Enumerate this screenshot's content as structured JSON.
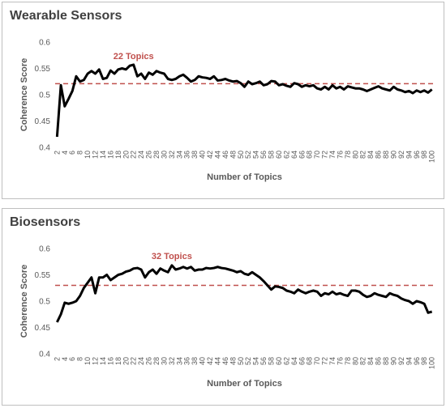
{
  "chart_data": [
    {
      "type": "line",
      "title": "Wearable Sensors",
      "x_label": "Number of Topics",
      "y_label": "Coherence Score",
      "x": [
        2,
        3,
        4,
        5,
        6,
        7,
        8,
        9,
        10,
        11,
        12,
        13,
        14,
        15,
        16,
        17,
        18,
        19,
        20,
        21,
        22,
        23,
        24,
        25,
        26,
        27,
        28,
        29,
        30,
        31,
        32,
        33,
        34,
        35,
        36,
        37,
        38,
        39,
        40,
        41,
        42,
        43,
        44,
        45,
        46,
        47,
        48,
        49,
        50,
        51,
        52,
        53,
        54,
        55,
        56,
        57,
        58,
        59,
        60,
        61,
        62,
        63,
        64,
        65,
        66,
        67,
        68,
        69,
        70,
        71,
        72,
        73,
        74,
        75,
        76,
        77,
        78,
        79,
        80,
        81,
        82,
        83,
        84,
        85,
        86,
        87,
        88,
        89,
        90,
        91,
        92,
        93,
        94,
        95,
        96,
        97,
        98,
        99,
        100
      ],
      "series": [
        {
          "name": "Coherence Score",
          "color": "#000000",
          "values": [
            0.42,
            0.518,
            0.478,
            0.492,
            0.507,
            0.535,
            0.525,
            0.528,
            0.54,
            0.545,
            0.54,
            0.548,
            0.53,
            0.532,
            0.546,
            0.54,
            0.548,
            0.55,
            0.548,
            0.555,
            0.557,
            0.535,
            0.54,
            0.53,
            0.542,
            0.538,
            0.545,
            0.542,
            0.54,
            0.53,
            0.528,
            0.53,
            0.535,
            0.538,
            0.532,
            0.525,
            0.528,
            0.535,
            0.533,
            0.532,
            0.53,
            0.535,
            0.527,
            0.528,
            0.53,
            0.527,
            0.525,
            0.526,
            0.522,
            0.515,
            0.525,
            0.52,
            0.522,
            0.525,
            0.518,
            0.52,
            0.526,
            0.525,
            0.518,
            0.52,
            0.517,
            0.515,
            0.522,
            0.52,
            0.515,
            0.518,
            0.516,
            0.518,
            0.512,
            0.51,
            0.515,
            0.51,
            0.518,
            0.512,
            0.515,
            0.51,
            0.516,
            0.514,
            0.512,
            0.512,
            0.51,
            0.507,
            0.51,
            0.513,
            0.516,
            0.512,
            0.51,
            0.508,
            0.515,
            0.51,
            0.508,
            0.505,
            0.507,
            0.503,
            0.508,
            0.505,
            0.508,
            0.504,
            0.51
          ]
        }
      ],
      "reference_line": {
        "value": 0.521,
        "color": "#c0504d"
      },
      "annotation": {
        "text": "22 Topics",
        "x": 22,
        "y": 0.568,
        "color": "#c0504d"
      },
      "xlim": [
        1.5,
        100.5
      ],
      "ylim": [
        0.4,
        0.6
      ],
      "yticks": [
        0.4,
        0.45,
        0.5,
        0.55,
        0.6
      ],
      "xticks": [
        2,
        4,
        6,
        8,
        10,
        12,
        14,
        16,
        18,
        20,
        22,
        24,
        26,
        28,
        30,
        32,
        34,
        36,
        38,
        40,
        42,
        44,
        46,
        48,
        50,
        52,
        54,
        56,
        58,
        60,
        62,
        64,
        66,
        68,
        70,
        72,
        74,
        76,
        78,
        80,
        82,
        84,
        86,
        88,
        90,
        92,
        94,
        96,
        98,
        100
      ],
      "grid": false
    },
    {
      "type": "line",
      "title": "Biosensors",
      "x_label": "Number of Topics",
      "y_label": "Coherence Score",
      "x": [
        2,
        3,
        4,
        5,
        6,
        7,
        8,
        9,
        10,
        11,
        12,
        13,
        14,
        15,
        16,
        17,
        18,
        19,
        20,
        21,
        22,
        23,
        24,
        25,
        26,
        27,
        28,
        29,
        30,
        31,
        32,
        33,
        34,
        35,
        36,
        37,
        38,
        39,
        40,
        41,
        42,
        43,
        44,
        45,
        46,
        47,
        48,
        49,
        50,
        51,
        52,
        53,
        54,
        55,
        56,
        57,
        58,
        59,
        60,
        61,
        62,
        63,
        64,
        65,
        66,
        67,
        68,
        69,
        70,
        71,
        72,
        73,
        74,
        75,
        76,
        77,
        78,
        79,
        80,
        81,
        82,
        83,
        84,
        85,
        86,
        87,
        88,
        89,
        90,
        91,
        92,
        93,
        94,
        95,
        96,
        97,
        98,
        99,
        100
      ],
      "series": [
        {
          "name": "Coherence Score",
          "color": "#000000",
          "values": [
            0.46,
            0.475,
            0.497,
            0.495,
            0.497,
            0.5,
            0.51,
            0.525,
            0.535,
            0.545,
            0.515,
            0.545,
            0.545,
            0.55,
            0.54,
            0.545,
            0.55,
            0.552,
            0.556,
            0.558,
            0.562,
            0.563,
            0.56,
            0.545,
            0.555,
            0.56,
            0.552,
            0.562,
            0.558,
            0.555,
            0.568,
            0.56,
            0.562,
            0.565,
            0.562,
            0.565,
            0.558,
            0.56,
            0.56,
            0.563,
            0.562,
            0.563,
            0.565,
            0.563,
            0.562,
            0.56,
            0.558,
            0.555,
            0.557,
            0.552,
            0.55,
            0.555,
            0.55,
            0.545,
            0.538,
            0.53,
            0.522,
            0.528,
            0.527,
            0.525,
            0.52,
            0.518,
            0.515,
            0.522,
            0.518,
            0.515,
            0.518,
            0.52,
            0.518,
            0.51,
            0.515,
            0.513,
            0.518,
            0.513,
            0.515,
            0.512,
            0.51,
            0.52,
            0.52,
            0.518,
            0.512,
            0.508,
            0.51,
            0.515,
            0.512,
            0.51,
            0.508,
            0.515,
            0.512,
            0.51,
            0.505,
            0.502,
            0.5,
            0.495,
            0.5,
            0.498,
            0.495,
            0.478,
            0.48
          ]
        }
      ],
      "reference_line": {
        "value": 0.53,
        "color": "#c0504d"
      },
      "annotation": {
        "text": "32 Topics",
        "x": 32,
        "y": 0.58,
        "color": "#c0504d"
      },
      "xlim": [
        1.5,
        100.5
      ],
      "ylim": [
        0.4,
        0.6
      ],
      "yticks": [
        0.4,
        0.45,
        0.5,
        0.55,
        0.6
      ],
      "xticks": [
        2,
        4,
        6,
        8,
        10,
        12,
        14,
        16,
        18,
        20,
        22,
        24,
        26,
        28,
        30,
        32,
        34,
        36,
        38,
        40,
        42,
        44,
        46,
        48,
        50,
        52,
        54,
        56,
        58,
        60,
        62,
        64,
        66,
        68,
        70,
        72,
        74,
        76,
        78,
        80,
        82,
        84,
        86,
        88,
        90,
        92,
        94,
        96,
        98,
        100
      ],
      "grid": false
    }
  ]
}
